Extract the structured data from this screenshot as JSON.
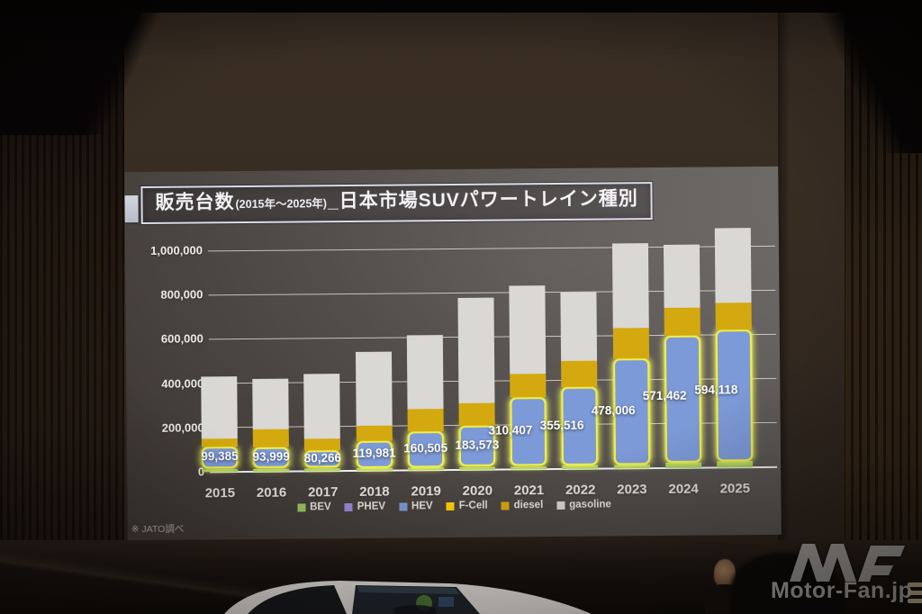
{
  "slide": {
    "title": {
      "main": "販売台数",
      "range": "(2015年～2025年)",
      "rest": "_日本市場SUVパワートレイン種別"
    },
    "source_note": "※ JATO調べ"
  },
  "chart_data": {
    "type": "bar",
    "stacked": true,
    "title": "販売台数(2015年～2025年)_日本市場SUVパワートレイン種別",
    "categories": [
      "2015",
      "2016",
      "2017",
      "2018",
      "2019",
      "2020",
      "2021",
      "2022",
      "2023",
      "2024",
      "2025"
    ],
    "series": [
      {
        "name": "BEV",
        "color": "#9dc865",
        "values": [
          1000,
          1000,
          1000,
          1000,
          3000,
          3000,
          8000,
          15000,
          18000,
          25000,
          27000
        ]
      },
      {
        "name": "PHEV",
        "color": "#9b8bd8",
        "values": [
          0,
          0,
          0,
          0,
          0,
          0,
          0,
          0,
          0,
          0,
          0
        ]
      },
      {
        "name": "HEV",
        "color": "#7d9ad8",
        "values": [
          99385,
          93999,
          80266,
          119981,
          160505,
          183573,
          310407,
          355516,
          478006,
          571462,
          594118
        ]
      },
      {
        "name": "F-Cell",
        "color": "#ffd40a",
        "values": [
          0,
          0,
          0,
          0,
          0,
          0,
          0,
          0,
          0,
          0,
          0
        ]
      },
      {
        "name": "diesel",
        "color": "#d4a90f",
        "values": [
          38000,
          83000,
          52000,
          68000,
          103000,
          102000,
          105000,
          118000,
          138000,
          127000,
          123000
        ]
      },
      {
        "name": "gasoline",
        "color": "#d9d8d5",
        "values": [
          280615,
          228001,
          291734,
          335019,
          333495,
          475427,
          399593,
          309484,
          380994,
          286538,
          337882
        ]
      }
    ],
    "estimated_from_bar_heights": [
      "BEV",
      "diesel",
      "gasoline"
    ],
    "hev_value_labels": [
      "99,385",
      "93,999",
      "80,266",
      "119,981",
      "160,505",
      "183,573",
      "310,407",
      "355,516",
      "478,006",
      "571,462",
      "594,118"
    ],
    "ylim": [
      0,
      1100000
    ],
    "ytick_labels": [
      "0",
      "200,000",
      "400,000",
      "600,000",
      "800,000",
      "1,000,000"
    ],
    "grid": true,
    "legend_position": "bottom",
    "highlight_outline": "#f0ef48",
    "highlight_note": "HEV segments outlined with yellow glow"
  },
  "watermark": {
    "text": "Motor-Fan.jp"
  }
}
